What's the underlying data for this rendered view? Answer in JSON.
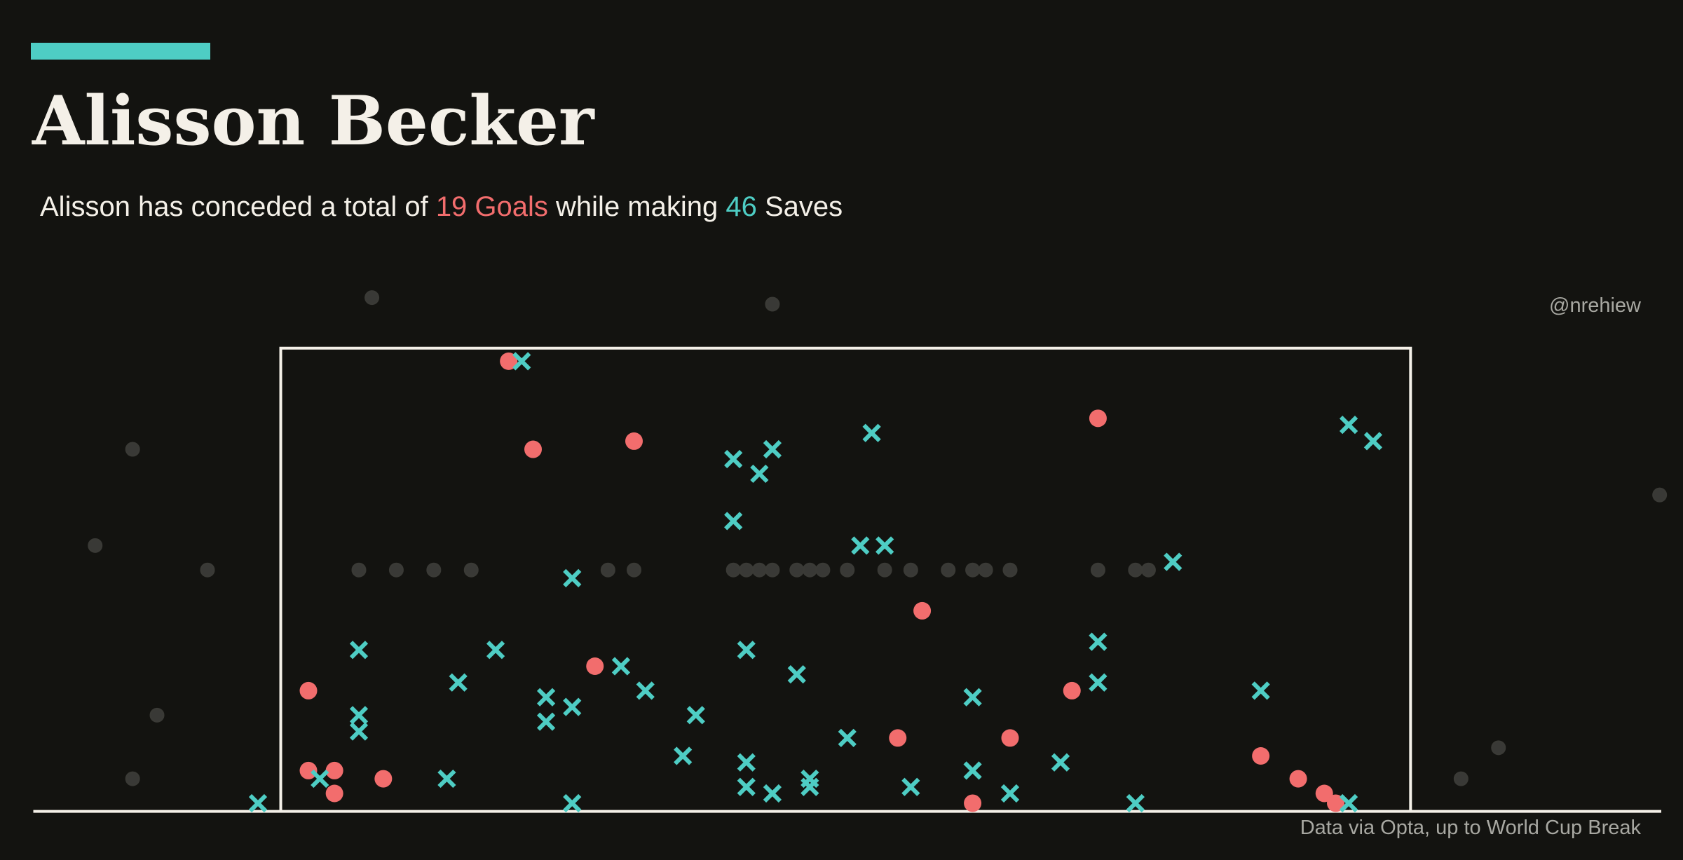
{
  "chart_data": {
    "type": "scatter",
    "title": "Alisson Becker",
    "subtitle": [
      {
        "text": "Alisson has conceded a total of ",
        "color": "#f4f0e8"
      },
      {
        "text": "19 Goals",
        "color": "#f26d6d"
      },
      {
        "text": " while making ",
        "color": "#f4f0e8"
      },
      {
        "text": "46",
        "color": "#4ecdc4"
      },
      {
        "text": " Saves",
        "color": "#f4f0e8"
      }
    ],
    "credit": "@nrehiew",
    "source": "Data via Opta, up to World Cup Break",
    "xlim": [
      0,
      100
    ],
    "ylim": [
      0,
      32
    ],
    "series": [
      {
        "marker": "circle",
        "color": "#5a5a55",
        "x": [
          20.8,
          45.4,
          6.1,
          3.8,
          10.7,
          20.0,
          22.3,
          24.6,
          26.9,
          35.3,
          36.9,
          43.0,
          43.8,
          44.6,
          45.4,
          46.9,
          47.7,
          48.5,
          50.0,
          52.3,
          53.9,
          56.2,
          57.7,
          58.5,
          60.0,
          65.4,
          67.7,
          68.5,
          99.9,
          7.6,
          6.1,
          90.0,
          87.7
        ],
        "values": [
          31.5,
          31.1,
          22.2,
          16.3,
          14.8,
          14.8,
          14.8,
          14.8,
          14.8,
          14.8,
          14.8,
          14.8,
          14.8,
          14.8,
          14.8,
          14.8,
          14.8,
          14.8,
          14.8,
          14.8,
          14.8,
          14.8,
          14.8,
          14.8,
          14.8,
          14.8,
          14.8,
          14.8,
          19.4,
          5.9,
          2.0,
          3.9,
          2.0
        ]
      },
      {
        "marker": "circle",
        "color": "#f26d6d",
        "x": [
          29.2,
          30.7,
          36.9,
          65.4,
          54.6,
          34.5,
          16.9,
          63.8,
          53.1,
          60.0,
          16.9,
          18.5,
          18.5,
          21.5,
          57.7,
          75.4,
          77.7,
          79.3,
          80.0
        ],
        "values": [
          27.6,
          22.2,
          22.7,
          24.1,
          12.3,
          8.9,
          7.4,
          7.4,
          4.5,
          4.5,
          2.5,
          2.5,
          1.1,
          2.0,
          0.5,
          3.4,
          2.0,
          1.1,
          0.5
        ]
      },
      {
        "marker": "cross",
        "color": "#4ecdc4",
        "x": [
          30.0,
          43.0,
          45.4,
          44.6,
          51.5,
          80.8,
          82.3,
          43.0,
          50.8,
          52.3,
          70.0,
          33.1,
          20.0,
          28.4,
          43.8,
          65.4,
          26.1,
          36.1,
          37.6,
          46.9,
          65.4,
          31.5,
          33.1,
          20.0,
          20.0,
          31.5,
          40.7,
          57.7,
          75.4,
          50.0,
          39.9,
          43.8,
          57.7,
          63.1,
          25.4,
          17.6,
          47.7,
          43.8,
          47.7,
          53.9,
          45.4,
          60.0,
          13.8,
          33.1,
          67.7,
          80.8
        ],
        "values": [
          27.6,
          21.6,
          22.2,
          20.7,
          23.2,
          23.7,
          22.7,
          17.8,
          16.3,
          16.3,
          15.3,
          14.3,
          9.9,
          9.9,
          9.9,
          10.4,
          7.9,
          8.9,
          7.4,
          8.4,
          7.9,
          7.0,
          6.4,
          5.9,
          4.9,
          5.5,
          5.9,
          7.0,
          7.4,
          4.5,
          3.4,
          3.0,
          2.5,
          3.0,
          2.0,
          2.0,
          2.0,
          1.5,
          1.5,
          1.5,
          1.1,
          1.1,
          0.5,
          0.5,
          0.5,
          0.5
        ]
      }
    ]
  }
}
